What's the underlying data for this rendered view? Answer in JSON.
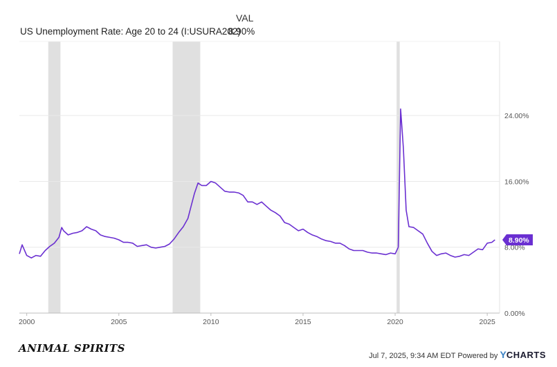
{
  "legend": {
    "header": "VAL",
    "series_label": "US Unemployment Rate: Age 20 to 24 (I:USURA202)",
    "series_value": "8.90%"
  },
  "footer": {
    "brand": "ANIMAL SPIRITS",
    "timestamp": "Jul 7, 2025, 9:34 AM EDT Powered by",
    "provider_y": "Y",
    "provider_rest": "CHARTS"
  },
  "colors": {
    "line": "#6a2fd1",
    "badge": "#6a2fd1",
    "recession": "#e0e0e0",
    "grid": "#e9e9e9"
  },
  "chart_data": {
    "type": "line",
    "title": "",
    "xlabel": "",
    "ylabel": "",
    "xlim": [
      1999.6,
      2025.67
    ],
    "ylim": [
      0,
      33
    ],
    "x_ticks": [
      2000,
      2005,
      2010,
      2015,
      2020,
      2025
    ],
    "x_tick_labels": [
      "2000",
      "2005",
      "2010",
      "2015",
      "2020",
      "2025"
    ],
    "y_ticks": [
      0,
      8,
      16,
      24
    ],
    "y_tick_labels": [
      "0.00%",
      "8.00%",
      "16.00%",
      "24.00%"
    ],
    "grid": true,
    "recessions": [
      [
        2001.17,
        2001.83
      ],
      [
        2007.92,
        2009.42
      ],
      [
        2020.08,
        2020.25
      ]
    ],
    "last_value_label": "8.90%",
    "series": [
      {
        "x": [
          1999.6,
          1999.75,
          2000.0,
          2000.25,
          2000.5,
          2000.75,
          2001.0,
          2001.25,
          2001.5,
          2001.75,
          2001.9,
          2002.0,
          2002.25,
          2002.5,
          2002.75,
          2003.0,
          2003.25,
          2003.5,
          2003.75,
          2004.0,
          2004.25,
          2004.5,
          2004.75,
          2005.0,
          2005.25,
          2005.5,
          2005.75,
          2006.0,
          2006.25,
          2006.5,
          2006.75,
          2007.0,
          2007.25,
          2007.5,
          2007.75,
          2008.0,
          2008.25,
          2008.5,
          2008.75,
          2008.9,
          2009.1,
          2009.3,
          2009.5,
          2009.75,
          2010.0,
          2010.25,
          2010.5,
          2010.75,
          2011.0,
          2011.25,
          2011.5,
          2011.75,
          2012.0,
          2012.25,
          2012.5,
          2012.75,
          2013.0,
          2013.25,
          2013.5,
          2013.75,
          2014.0,
          2014.25,
          2014.5,
          2014.75,
          2015.0,
          2015.25,
          2015.5,
          2015.75,
          2016.0,
          2016.25,
          2016.5,
          2016.75,
          2017.0,
          2017.25,
          2017.5,
          2017.75,
          2018.0,
          2018.25,
          2018.5,
          2018.75,
          2019.0,
          2019.25,
          2019.5,
          2019.75,
          2020.0,
          2020.17,
          2020.3,
          2020.45,
          2020.6,
          2020.75,
          2021.0,
          2021.25,
          2021.5,
          2021.75,
          2022.0,
          2022.25,
          2022.5,
          2022.75,
          2023.0,
          2023.25,
          2023.5,
          2023.75,
          2024.0,
          2024.25,
          2024.5,
          2024.75,
          2025.0,
          2025.25,
          2025.42
        ],
        "y": [
          7.2,
          8.3,
          7.0,
          6.7,
          7.0,
          6.9,
          7.6,
          8.1,
          8.5,
          9.2,
          10.4,
          10.0,
          9.5,
          9.7,
          9.8,
          10.0,
          10.5,
          10.2,
          10.0,
          9.5,
          9.3,
          9.2,
          9.1,
          8.9,
          8.6,
          8.6,
          8.5,
          8.1,
          8.2,
          8.3,
          8.0,
          7.9,
          8.0,
          8.1,
          8.4,
          9.0,
          9.8,
          10.5,
          11.5,
          12.8,
          14.5,
          15.8,
          15.5,
          15.5,
          16.0,
          15.8,
          15.3,
          14.8,
          14.7,
          14.7,
          14.6,
          14.3,
          13.5,
          13.5,
          13.2,
          13.5,
          13.0,
          12.5,
          12.2,
          11.8,
          11.0,
          10.8,
          10.4,
          10.0,
          10.2,
          9.8,
          9.5,
          9.3,
          9.0,
          8.8,
          8.7,
          8.5,
          8.5,
          8.2,
          7.8,
          7.6,
          7.6,
          7.6,
          7.4,
          7.3,
          7.3,
          7.2,
          7.1,
          7.3,
          7.2,
          8.0,
          24.8,
          20.0,
          12.5,
          10.5,
          10.4,
          10.0,
          9.6,
          8.5,
          7.5,
          7.0,
          7.2,
          7.3,
          7.0,
          6.8,
          6.9,
          7.1,
          7.0,
          7.4,
          7.8,
          7.7,
          8.5,
          8.6,
          8.9
        ]
      }
    ]
  }
}
